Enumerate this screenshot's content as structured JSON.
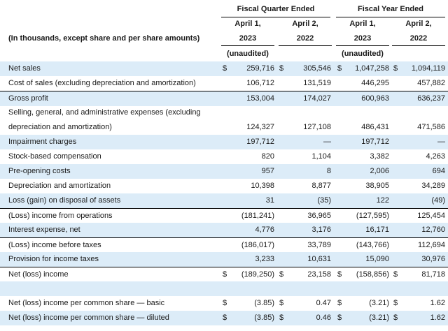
{
  "header": {
    "group_quarter": "Fiscal Quarter Ended",
    "group_year": "Fiscal Year Ended",
    "caption": "(In thousands, except share and per share amounts)",
    "columns": [
      {
        "line1": "April 1,",
        "line2": "2023",
        "note": "(unaudited)"
      },
      {
        "line1": "April 2,",
        "line2": "2022",
        "note": ""
      },
      {
        "line1": "April 1,",
        "line2": "2023",
        "note": "(unaudited)"
      },
      {
        "line1": "April 2,",
        "line2": "2022",
        "note": ""
      }
    ]
  },
  "rows": [
    {
      "label": "Net sales",
      "values": [
        "259,716",
        "305,546",
        "1,047,258",
        "1,094,119"
      ],
      "dollars": [
        "$",
        "$",
        "$",
        "$"
      ]
    },
    {
      "label": "Cost of sales (excluding depreciation and amortization)",
      "values": [
        "106,712",
        "131,519",
        "446,295",
        "457,882"
      ]
    },
    {
      "label": "Gross profit",
      "values": [
        "153,004",
        "174,027",
        "600,963",
        "636,237"
      ]
    },
    {
      "label": "Selling, general, and administrative expenses (excluding",
      "label2": "depreciation and amortization)",
      "values": [
        "124,327",
        "127,108",
        "486,431",
        "471,586"
      ]
    },
    {
      "label": "Impairment charges",
      "values": [
        "197,712",
        "—",
        "197,712",
        "—"
      ]
    },
    {
      "label": "Stock-based compensation",
      "values": [
        "820",
        "1,104",
        "3,382",
        "4,263"
      ]
    },
    {
      "label": "Pre-opening costs",
      "values": [
        "957",
        "8",
        "2,006",
        "694"
      ]
    },
    {
      "label": "Depreciation and amortization",
      "values": [
        "10,398",
        "8,877",
        "38,905",
        "34,289"
      ]
    },
    {
      "label": "Loss (gain) on disposal of assets",
      "values": [
        "31",
        "(35)",
        "122",
        "(49)"
      ]
    },
    {
      "label": "(Loss) income from operations",
      "values": [
        "(181,241)",
        "36,965",
        "(127,595)",
        "125,454"
      ]
    },
    {
      "label": "Interest expense, net",
      "values": [
        "4,776",
        "3,176",
        "16,171",
        "12,760"
      ]
    },
    {
      "label": "(Loss) income before taxes",
      "values": [
        "(186,017)",
        "33,789",
        "(143,766)",
        "112,694"
      ]
    },
    {
      "label": "Provision for income taxes",
      "values": [
        "3,233",
        "10,631",
        "15,090",
        "30,976"
      ]
    },
    {
      "label": "Net (loss) income",
      "values": [
        "(189,250)",
        "23,158",
        "(158,856)",
        "81,718"
      ],
      "dollars": [
        "$",
        "$",
        "$",
        "$"
      ]
    },
    {
      "label": "",
      "values": [
        "",
        "",
        "",
        ""
      ]
    },
    {
      "label": "Net (loss) income per common share — basic",
      "values": [
        "(3.85)",
        "0.47",
        "(3.21)",
        "1.62"
      ],
      "dollars": [
        "$",
        "$",
        "$",
        "$"
      ]
    },
    {
      "label": "Net (loss) income per common share — diluted",
      "values": [
        "(3.85)",
        "0.46",
        "(3.21)",
        "1.62"
      ],
      "dollars": [
        "$",
        "$",
        "$",
        "$"
      ]
    }
  ]
}
